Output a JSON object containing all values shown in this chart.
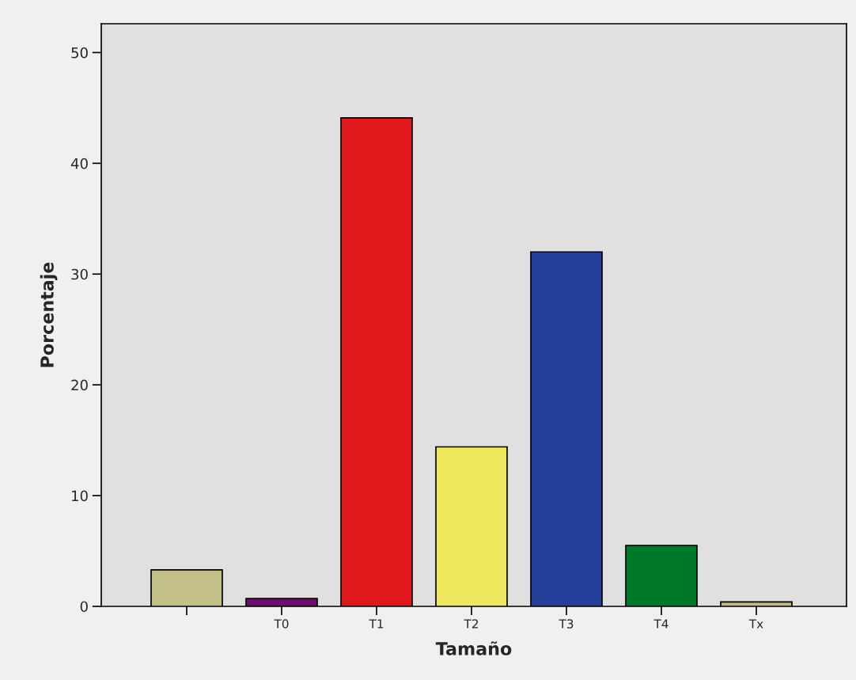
{
  "chart_data": {
    "type": "bar",
    "xlabel": "Tamaño",
    "ylabel": "Porcentaje",
    "categories": [
      null,
      "T0",
      "T1",
      "T2",
      "T3",
      "T4",
      "Tx"
    ],
    "values": [
      3.3,
      0.7,
      44.1,
      14.4,
      32.0,
      5.5,
      0.4
    ],
    "colors": [
      "#c4c08a",
      "#6b0f6b",
      "#e0191d",
      "#efe85f",
      "#233f99",
      "#00782a",
      "#c4b880"
    ],
    "ylim": [
      0,
      52.6
    ],
    "yticks": [
      0,
      10,
      20,
      30,
      40,
      50
    ],
    "grid": false,
    "legend": false
  }
}
